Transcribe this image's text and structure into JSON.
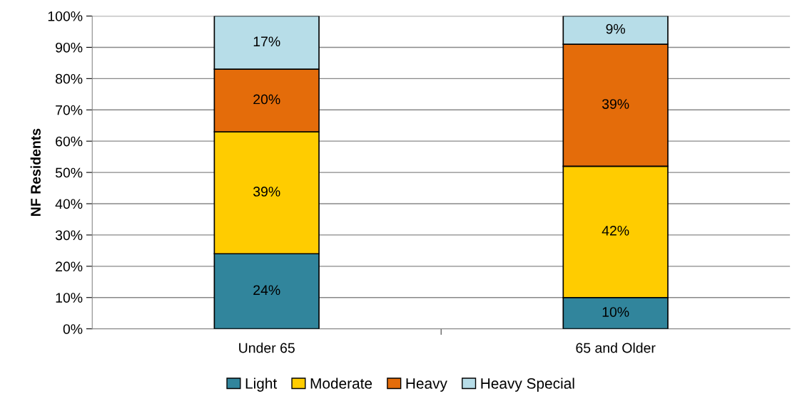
{
  "chart_data": {
    "type": "bar",
    "stacked": true,
    "ylabel": "NF Residents",
    "categories": [
      "Under 65",
      "65 and Older"
    ],
    "series": [
      {
        "name": "Light",
        "color": "#31859c",
        "values": [
          24,
          10
        ],
        "value_labels": [
          "24%",
          "10%"
        ]
      },
      {
        "name": "Moderate",
        "color": "#ffcc00",
        "values": [
          39,
          42
        ],
        "value_labels": [
          "39%",
          "42%"
        ]
      },
      {
        "name": "Heavy",
        "color": "#e46c0a",
        "values": [
          20,
          39
        ],
        "value_labels": [
          "20%",
          "39%"
        ]
      },
      {
        "name": "Heavy Special",
        "color": "#b7dde8",
        "values": [
          17,
          9
        ],
        "value_labels": [
          "17%",
          "9%"
        ]
      }
    ],
    "ylim": [
      0,
      100
    ],
    "yticks": [
      {
        "value": 0,
        "label": "0%"
      },
      {
        "value": 10,
        "label": "10%"
      },
      {
        "value": 20,
        "label": "20%"
      },
      {
        "value": 30,
        "label": "30%"
      },
      {
        "value": 40,
        "label": "40%"
      },
      {
        "value": 50,
        "label": "50%"
      },
      {
        "value": 60,
        "label": "60%"
      },
      {
        "value": 70,
        "label": "70%"
      },
      {
        "value": 80,
        "label": "80%"
      },
      {
        "value": 90,
        "label": "90%"
      },
      {
        "value": 100,
        "label": "100%"
      }
    ],
    "grid": "y",
    "legend": "bottom"
  }
}
